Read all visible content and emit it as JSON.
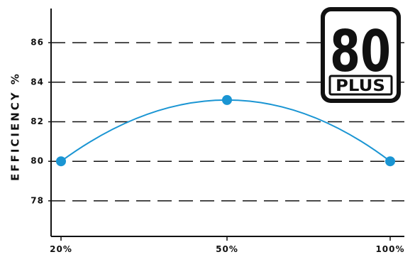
{
  "chart_data": {
    "type": "line",
    "title": "",
    "xlabel": "",
    "ylabel": "EFFICIENCY %",
    "categories": [
      "20%",
      "50%",
      "100%"
    ],
    "x": [
      20,
      50,
      100
    ],
    "values": [
      80,
      83.1,
      80
    ],
    "y_ticks": [
      "78",
      "80",
      "82",
      "84",
      "86"
    ],
    "ylim": [
      76.2,
      87.8
    ],
    "grid": "dashed horizontal",
    "line_color": "#1a95d3",
    "grid_color": "#111111"
  },
  "badge": {
    "number": "80",
    "text": "PLUS"
  }
}
